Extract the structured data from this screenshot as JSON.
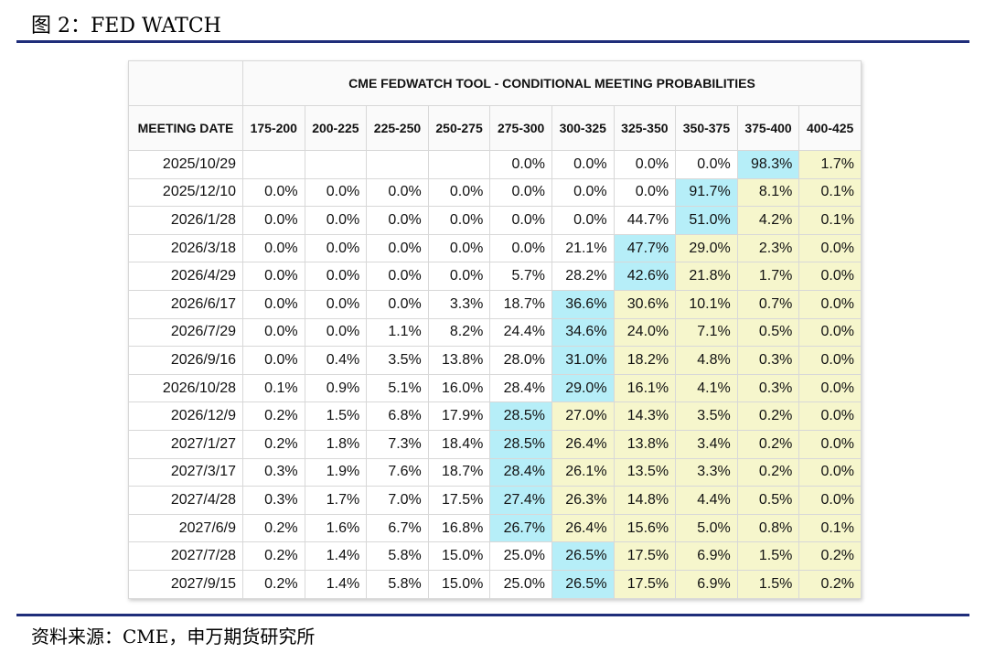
{
  "header": {
    "title": "图 2：FED WATCH"
  },
  "table": {
    "title": "CME FEDWATCH TOOL - CONDITIONAL MEETING PROBABILITIES",
    "columns": [
      "MEETING DATE",
      "175-200",
      "200-225",
      "225-250",
      "250-275",
      "275-300",
      "300-325",
      "325-350",
      "350-375",
      "375-400",
      "400-425"
    ],
    "peak_color": "#b6eef8",
    "above_peak_color": "#f6f6cc",
    "rows": [
      [
        "2025/10/29",
        null,
        null,
        null,
        null,
        "0.0%",
        "0.0%",
        "0.0%",
        "0.0%",
        "98.3%",
        "1.7%"
      ],
      [
        "2025/12/10",
        "0.0%",
        "0.0%",
        "0.0%",
        "0.0%",
        "0.0%",
        "0.0%",
        "0.0%",
        "91.7%",
        "8.1%",
        "0.1%"
      ],
      [
        "2026/1/28",
        "0.0%",
        "0.0%",
        "0.0%",
        "0.0%",
        "0.0%",
        "0.0%",
        "44.7%",
        "51.0%",
        "4.2%",
        "0.1%"
      ],
      [
        "2026/3/18",
        "0.0%",
        "0.0%",
        "0.0%",
        "0.0%",
        "0.0%",
        "21.1%",
        "47.7%",
        "29.0%",
        "2.3%",
        "0.0%"
      ],
      [
        "2026/4/29",
        "0.0%",
        "0.0%",
        "0.0%",
        "0.0%",
        "5.7%",
        "28.2%",
        "42.6%",
        "21.8%",
        "1.7%",
        "0.0%"
      ],
      [
        "2026/6/17",
        "0.0%",
        "0.0%",
        "0.0%",
        "3.3%",
        "18.7%",
        "36.6%",
        "30.6%",
        "10.1%",
        "0.7%",
        "0.0%"
      ],
      [
        "2026/7/29",
        "0.0%",
        "0.0%",
        "1.1%",
        "8.2%",
        "24.4%",
        "34.6%",
        "24.0%",
        "7.1%",
        "0.5%",
        "0.0%"
      ],
      [
        "2026/9/16",
        "0.0%",
        "0.4%",
        "3.5%",
        "13.8%",
        "28.0%",
        "31.0%",
        "18.2%",
        "4.8%",
        "0.3%",
        "0.0%"
      ],
      [
        "2026/10/28",
        "0.1%",
        "0.9%",
        "5.1%",
        "16.0%",
        "28.4%",
        "29.0%",
        "16.1%",
        "4.1%",
        "0.3%",
        "0.0%"
      ],
      [
        "2026/12/9",
        "0.2%",
        "1.5%",
        "6.8%",
        "17.9%",
        "28.5%",
        "27.0%",
        "14.3%",
        "3.5%",
        "0.2%",
        "0.0%"
      ],
      [
        "2027/1/27",
        "0.2%",
        "1.8%",
        "7.3%",
        "18.4%",
        "28.5%",
        "26.4%",
        "13.8%",
        "3.4%",
        "0.2%",
        "0.0%"
      ],
      [
        "2027/3/17",
        "0.3%",
        "1.9%",
        "7.6%",
        "18.7%",
        "28.4%",
        "26.1%",
        "13.5%",
        "3.3%",
        "0.2%",
        "0.0%"
      ],
      [
        "2027/4/28",
        "0.3%",
        "1.7%",
        "7.0%",
        "17.5%",
        "27.4%",
        "26.3%",
        "14.8%",
        "4.4%",
        "0.5%",
        "0.0%"
      ],
      [
        "2027/6/9",
        "0.2%",
        "1.6%",
        "6.7%",
        "16.8%",
        "26.7%",
        "26.4%",
        "15.6%",
        "5.0%",
        "0.8%",
        "0.1%"
      ],
      [
        "2027/7/28",
        "0.2%",
        "1.4%",
        "5.8%",
        "15.0%",
        "25.0%",
        "26.5%",
        "17.5%",
        "6.9%",
        "1.5%",
        "0.2%"
      ],
      [
        "2027/9/15",
        "0.2%",
        "1.4%",
        "5.8%",
        "15.0%",
        "25.0%",
        "26.5%",
        "17.5%",
        "6.9%",
        "1.5%",
        "0.2%"
      ]
    ]
  },
  "footer": {
    "source": "资料来源：CME，申万期货研究所"
  }
}
